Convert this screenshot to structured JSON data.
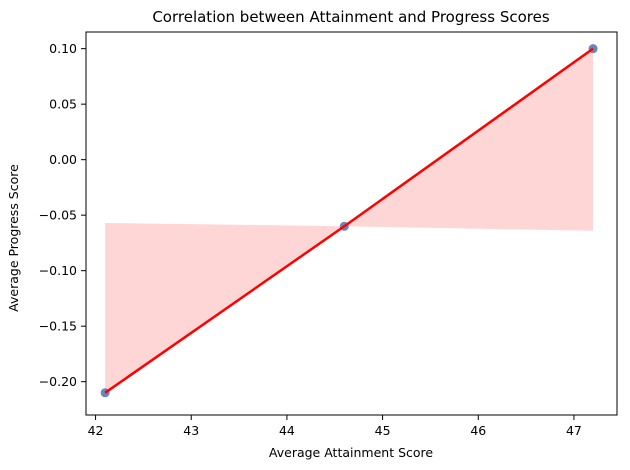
{
  "chart_data": {
    "type": "scatter",
    "title": "Correlation between Attainment and Progress Scores",
    "xlabel": "Average Attainment Score",
    "ylabel": "Average Progress Score",
    "xlim": [
      41.9,
      47.45
    ],
    "ylim": [
      -0.23,
      0.115
    ],
    "xticks": [
      42,
      43,
      44,
      45,
      46,
      47
    ],
    "yticks": [
      -0.2,
      -0.15,
      -0.1,
      -0.05,
      0.0,
      0.05,
      0.1
    ],
    "grid": false,
    "points": [
      {
        "x": 42.1,
        "y": -0.21
      },
      {
        "x": 44.6,
        "y": -0.06
      },
      {
        "x": 47.2,
        "y": 0.1
      }
    ],
    "regression": {
      "color": "#ff0000",
      "confidence_band": [
        {
          "x": 42.1,
          "upper": -0.057,
          "lower": -0.21
        },
        {
          "x": 44.6,
          "upper": -0.06,
          "lower": -0.06
        },
        {
          "x": 47.2,
          "upper": 0.1,
          "lower": -0.064
        }
      ],
      "band_color": "#ffd6d6"
    },
    "point_color": "#4c72b0"
  }
}
